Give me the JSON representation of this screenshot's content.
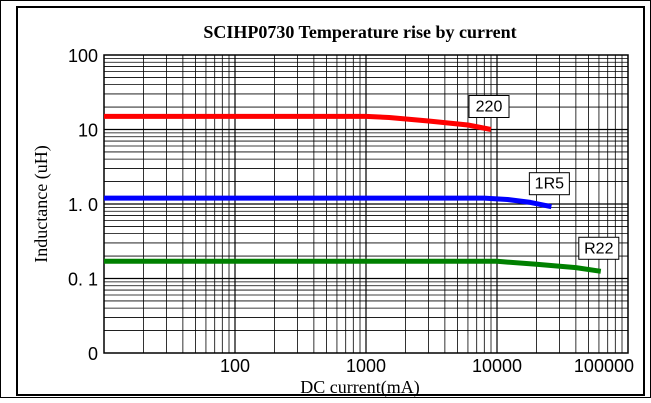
{
  "chart_data": {
    "type": "line",
    "title": "SCIHP0730 Temperature rise by current",
    "xlabel": "DC current(mA)",
    "ylabel": "Inductance (uH)",
    "x_scale": "log",
    "y_scale": "log",
    "xlim": [
      10,
      100000
    ],
    "ylim": [
      0.01,
      100
    ],
    "x_ticks": [
      {
        "value": 100,
        "label": "100"
      },
      {
        "value": 1000,
        "label": "1000"
      },
      {
        "value": 10000,
        "label": "10000"
      },
      {
        "value": 100000,
        "label": "100000"
      }
    ],
    "y_ticks": [
      {
        "value": 100,
        "label": "100"
      },
      {
        "value": 10,
        "label": "10"
      },
      {
        "value": 1,
        "label": "1. 0"
      },
      {
        "value": 0.1,
        "label": "0. 1"
      },
      {
        "value": 0.01,
        "label": "0"
      }
    ],
    "grid": true,
    "series": [
      {
        "name": "220",
        "color": "#ff0000",
        "x": [
          10,
          100,
          1000,
          1500,
          3000,
          6000,
          9000
        ],
        "y": [
          15,
          15,
          15,
          14.5,
          13,
          11.5,
          10
        ]
      },
      {
        "name": "1R5",
        "color": "#0000ff",
        "x": [
          10,
          100,
          1000,
          8000,
          12000,
          18000,
          26000
        ],
        "y": [
          1.2,
          1.2,
          1.2,
          1.2,
          1.15,
          1.05,
          0.92
        ]
      },
      {
        "name": "R22",
        "color": "#008000",
        "x": [
          10,
          100,
          1000,
          10000,
          20000,
          40000,
          62000
        ],
        "y": [
          0.17,
          0.17,
          0.17,
          0.17,
          0.155,
          0.14,
          0.125
        ]
      }
    ]
  }
}
